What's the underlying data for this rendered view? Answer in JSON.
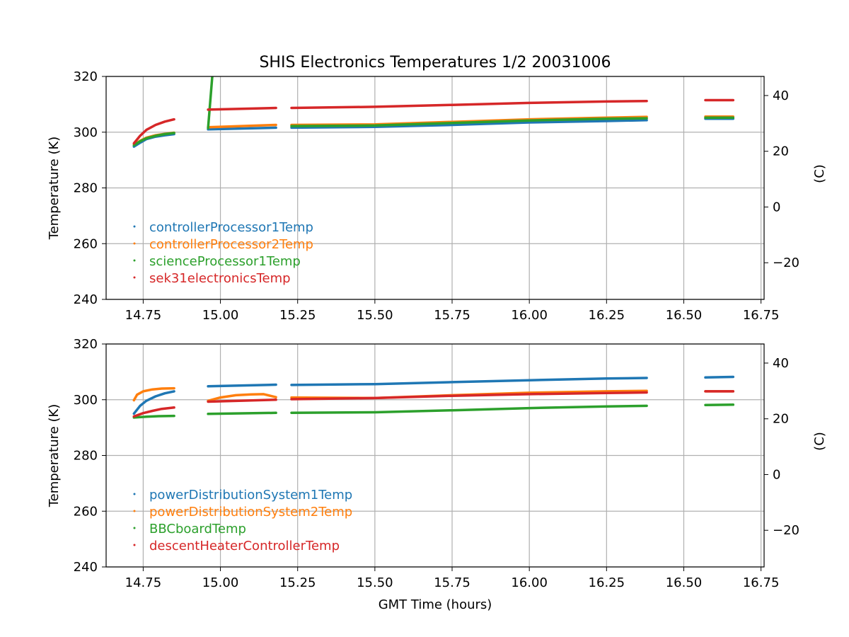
{
  "figure": {
    "title": "SHIS Electronics Temperatures 1/2 20031006",
    "xlabel": "GMT Time (hours)"
  },
  "chart_data": [
    {
      "type": "scatter",
      "ylabel": "Temperature (K)",
      "ylabel_right": "(C)",
      "xlim": [
        14.63,
        16.76
      ],
      "ylim": [
        240,
        320
      ],
      "x_ticks": [
        "14.75",
        "15.00",
        "15.25",
        "15.50",
        "15.75",
        "16.00",
        "16.25",
        "16.50",
        "16.75"
      ],
      "y_ticks": [
        "240",
        "260",
        "280",
        "300",
        "320"
      ],
      "y2_ticks": [
        "−20",
        "0",
        "20",
        "40"
      ],
      "grid": true,
      "legend_position": "lower-left",
      "series": [
        {
          "name": "controllerProcessor1Temp",
          "color": "#1f77b4",
          "segments": [
            {
              "x": [
                14.72,
                14.74,
                14.76,
                14.79,
                14.82,
                14.85
              ],
              "y": [
                294.8,
                296.2,
                297.5,
                298.4,
                298.9,
                299.3
              ]
            },
            {
              "x": [
                14.96,
                15.18
              ],
              "y": [
                301.0,
                301.6
              ]
            },
            {
              "x": [
                15.23,
                15.5,
                15.75,
                16.0,
                16.25,
                16.38
              ],
              "y": [
                301.6,
                301.9,
                302.6,
                303.5,
                304.0,
                304.3
              ]
            },
            {
              "x": [
                16.57,
                16.66
              ],
              "y": [
                304.8,
                304.8
              ]
            }
          ]
        },
        {
          "name": "controllerProcessor2Temp",
          "color": "#ff7f0e",
          "segments": [
            {
              "x": [
                14.72,
                14.74,
                14.76,
                14.79,
                14.82,
                14.85
              ],
              "y": [
                295.5,
                296.9,
                298.0,
                298.9,
                299.4,
                299.8
              ]
            },
            {
              "x": [
                14.96,
                15.18
              ],
              "y": [
                301.8,
                302.6
              ]
            },
            {
              "x": [
                15.23,
                15.5,
                15.75,
                16.0,
                16.25,
                16.38
              ],
              "y": [
                302.6,
                302.8,
                303.7,
                304.6,
                305.2,
                305.5
              ]
            },
            {
              "x": [
                16.57,
                16.66
              ],
              "y": [
                305.6,
                305.6
              ]
            }
          ]
        },
        {
          "name": "scienceProcessor1Temp",
          "color": "#2ca02c",
          "segments": [
            {
              "x": [
                14.72,
                14.74,
                14.76,
                14.79,
                14.82,
                14.85
              ],
              "y": [
                295.3,
                296.7,
                297.8,
                298.7,
                299.3,
                299.7
              ]
            },
            {
              "x": [
                14.96,
                15.18
              ],
              "y": [
                301.4,
                602.1
              ]
            },
            {
              "x": [
                15.23,
                15.5,
                15.75,
                16.0,
                16.25,
                16.38
              ],
              "y": [
                302.2,
                302.4,
                303.3,
                304.2,
                304.8,
                305.0
              ]
            },
            {
              "x": [
                16.57,
                16.66
              ],
              "y": [
                305.2,
                305.2
              ]
            }
          ]
        },
        {
          "name": "sek31electronicsTemp",
          "color": "#d62728",
          "segments": [
            {
              "x": [
                14.72,
                14.74,
                14.76,
                14.79,
                14.82,
                14.85
              ],
              "y": [
                296.0,
                298.7,
                300.8,
                302.6,
                303.8,
                304.6
              ]
            },
            {
              "x": [
                14.96,
                15.18
              ],
              "y": [
                308.1,
                308.7
              ]
            },
            {
              "x": [
                15.23,
                15.5,
                15.75,
                16.0,
                16.25,
                16.38
              ],
              "y": [
                308.7,
                309.1,
                309.8,
                310.5,
                311.0,
                311.2
              ]
            },
            {
              "x": [
                16.57,
                16.66
              ],
              "y": [
                311.5,
                311.5
              ]
            }
          ]
        }
      ]
    },
    {
      "type": "scatter",
      "ylabel": "Temperature (K)",
      "ylabel_right": "(C)",
      "xlim": [
        14.63,
        16.76
      ],
      "ylim": [
        240,
        320
      ],
      "x_ticks": [
        "14.75",
        "15.00",
        "15.25",
        "15.50",
        "15.75",
        "16.00",
        "16.25",
        "16.50",
        "16.75"
      ],
      "y_ticks": [
        "240",
        "260",
        "280",
        "300",
        "320"
      ],
      "y2_ticks": [
        "−20",
        "0",
        "20",
        "40"
      ],
      "grid": true,
      "legend_position": "lower-left",
      "series": [
        {
          "name": "powerDistributionSystem1Temp",
          "color": "#1f77b4",
          "segments": [
            {
              "x": [
                14.72,
                14.74,
                14.76,
                14.79,
                14.82,
                14.85
              ],
              "y": [
                295.0,
                297.8,
                299.6,
                301.2,
                302.3,
                303.0
              ]
            },
            {
              "x": [
                14.96,
                15.18
              ],
              "y": [
                304.8,
                305.4
              ]
            },
            {
              "x": [
                15.23,
                15.5,
                15.75,
                16.0,
                16.25,
                16.38
              ],
              "y": [
                305.3,
                305.6,
                306.3,
                307.0,
                307.6,
                307.8
              ]
            },
            {
              "x": [
                16.57,
                16.66
              ],
              "y": [
                308.0,
                308.2
              ]
            }
          ]
        },
        {
          "name": "powerDistributionSystem2Temp",
          "color": "#ff7f0e",
          "segments": [
            {
              "x": [
                14.72,
                14.73,
                14.75,
                14.78,
                14.81,
                14.85
              ],
              "y": [
                299.8,
                301.8,
                303.0,
                303.7,
                304.0,
                304.1
              ]
            },
            {
              "x": [
                14.96,
                15.0,
                15.05,
                15.1,
                15.14,
                15.18
              ],
              "y": [
                299.6,
                300.8,
                301.6,
                301.9,
                302.0,
                300.9
              ]
            },
            {
              "x": [
                15.23,
                15.5,
                15.75,
                16.0,
                16.25,
                16.38
              ],
              "y": [
                300.8,
                300.6,
                301.6,
                302.5,
                303.0,
                303.2
              ]
            },
            {
              "x": [
                16.57,
                16.66
              ],
              "y": [
                303.0,
                303.0
              ]
            }
          ]
        },
        {
          "name": "BBCboardTemp",
          "color": "#2ca02c",
          "segments": [
            {
              "x": [
                14.72,
                14.76,
                14.8,
                14.85
              ],
              "y": [
                293.6,
                293.9,
                294.1,
                294.2
              ]
            },
            {
              "x": [
                14.96,
                15.18
              ],
              "y": [
                294.9,
                295.3
              ]
            },
            {
              "x": [
                15.23,
                15.5,
                15.75,
                16.0,
                16.25,
                16.38
              ],
              "y": [
                295.3,
                295.5,
                296.2,
                297.0,
                297.6,
                297.8
              ]
            },
            {
              "x": [
                16.57,
                16.66
              ],
              "y": [
                298.1,
                298.2
              ]
            }
          ]
        },
        {
          "name": "descentHeaterControllerTemp",
          "color": "#d62728",
          "segments": [
            {
              "x": [
                14.72,
                14.75,
                14.78,
                14.81,
                14.85
              ],
              "y": [
                294.0,
                295.2,
                296.0,
                296.7,
                297.2
              ]
            },
            {
              "x": [
                14.96,
                15.18
              ],
              "y": [
                299.3,
                300.0
              ]
            },
            {
              "x": [
                15.23,
                15.5,
                15.75,
                16.0,
                16.25,
                16.38
              ],
              "y": [
                300.2,
                300.6,
                301.4,
                302.0,
                302.4,
                302.6
              ]
            },
            {
              "x": [
                16.57,
                16.66
              ],
              "y": [
                303.0,
                303.0
              ]
            }
          ]
        }
      ]
    }
  ]
}
